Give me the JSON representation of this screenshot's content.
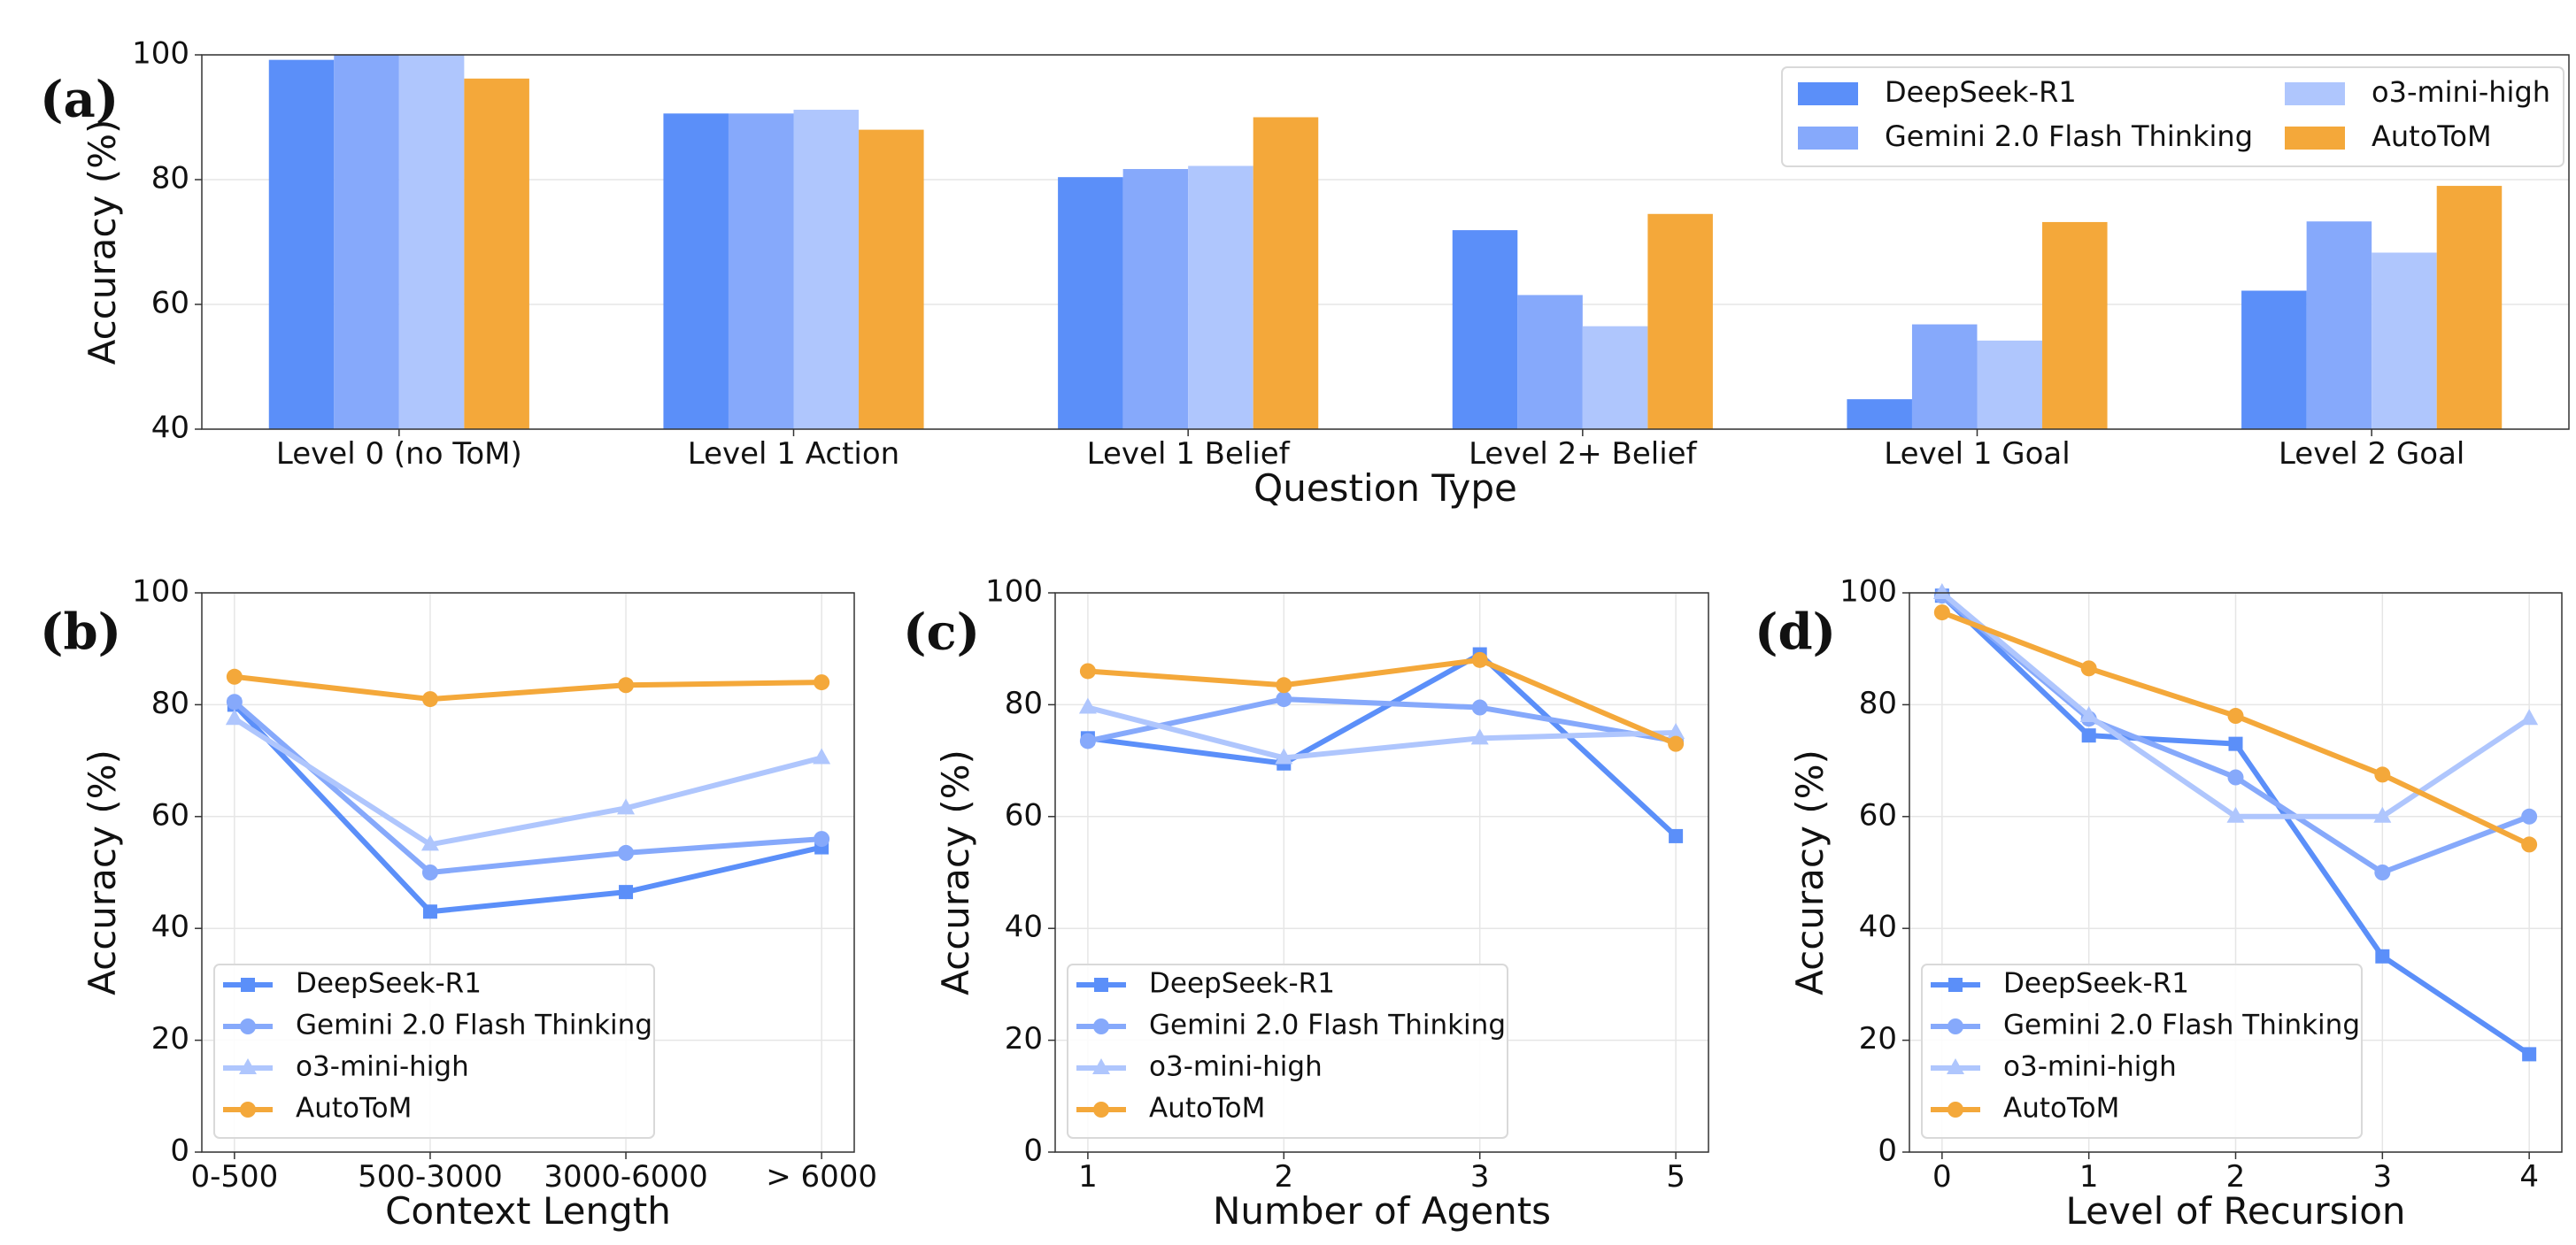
{
  "series_names": [
    "DeepSeek-R1",
    "Gemini 2.0 Flash Thinking",
    "o3-mini-high",
    "AutoToM"
  ],
  "colors": {
    "DeepSeek-R1": "#5b8ff9",
    "Gemini 2.0 Flash Thinking": "#86a9fb",
    "o3-mini-high": "#afc6fd",
    "AutoToM": "#f4a83a"
  },
  "chart_data": [
    {
      "panel": "(a)",
      "type": "bar",
      "categories": [
        "Level 0 (no ToM)",
        "Level 1 Action",
        "Level 1 Belief",
        "Level 2+ Belief",
        "Level 1 Goal",
        "Level 2 Goal"
      ],
      "series": [
        {
          "name": "DeepSeek-R1",
          "values": [
            99.2,
            90.6,
            80.4,
            71.9,
            44.8,
            62.2
          ]
        },
        {
          "name": "Gemini 2.0 Flash Thinking",
          "values": [
            100,
            90.6,
            81.7,
            61.5,
            56.8,
            73.3
          ]
        },
        {
          "name": "o3-mini-high",
          "values": [
            100,
            91.2,
            82.2,
            56.5,
            54.2,
            68.3
          ]
        },
        {
          "name": "AutoToM",
          "values": [
            96.2,
            88.0,
            90.0,
            74.5,
            73.2,
            79.0
          ]
        }
      ],
      "xlabel": "Question Type",
      "ylabel": "Accuracy (%)",
      "ylim": [
        40,
        100
      ],
      "yticks": [
        40,
        60,
        80,
        100
      ],
      "legend": "top-right"
    },
    {
      "panel": "(b)",
      "type": "line",
      "categories": [
        "0-500",
        "500-3000",
        "3000-6000",
        "> 6000"
      ],
      "series": [
        {
          "name": "DeepSeek-R1",
          "marker": "square",
          "values": [
            80.0,
            43.0,
            46.5,
            54.5
          ]
        },
        {
          "name": "Gemini 2.0 Flash Thinking",
          "marker": "circle",
          "values": [
            80.5,
            50.0,
            53.5,
            56.0
          ]
        },
        {
          "name": "o3-mini-high",
          "marker": "triangle",
          "values": [
            77.5,
            55.0,
            61.5,
            70.5
          ]
        },
        {
          "name": "AutoToM",
          "marker": "circle",
          "values": [
            85.0,
            81.0,
            83.5,
            84.0
          ]
        }
      ],
      "xlabel": "Context Length",
      "ylabel": "Accuracy (%)",
      "ylim": [
        0,
        100
      ],
      "yticks": [
        0,
        20,
        40,
        60,
        80,
        100
      ],
      "legend": "bottom-left"
    },
    {
      "panel": "(c)",
      "type": "line",
      "categories": [
        "1",
        "2",
        "3",
        "5"
      ],
      "series": [
        {
          "name": "DeepSeek-R1",
          "marker": "square",
          "values": [
            74.0,
            69.5,
            89.0,
            56.5
          ]
        },
        {
          "name": "Gemini 2.0 Flash Thinking",
          "marker": "circle",
          "values": [
            73.5,
            81.0,
            79.5,
            73.5
          ]
        },
        {
          "name": "o3-mini-high",
          "marker": "triangle",
          "values": [
            79.5,
            70.5,
            74.0,
            75.0
          ]
        },
        {
          "name": "AutoToM",
          "marker": "circle",
          "values": [
            86.0,
            83.5,
            88.0,
            73.0
          ]
        }
      ],
      "xlabel": "Number of Agents",
      "ylabel": "Accuracy (%)",
      "ylim": [
        0,
        100
      ],
      "yticks": [
        0,
        20,
        40,
        60,
        80,
        100
      ],
      "legend": "bottom-left"
    },
    {
      "panel": "(d)",
      "type": "line",
      "categories": [
        "0",
        "1",
        "2",
        "3",
        "4"
      ],
      "series": [
        {
          "name": "DeepSeek-R1",
          "marker": "square",
          "values": [
            99.5,
            74.5,
            73.0,
            35.0,
            17.5
          ]
        },
        {
          "name": "Gemini 2.0 Flash Thinking",
          "marker": "circle",
          "values": [
            99.5,
            77.5,
            67.0,
            50.0,
            60.0
          ]
        },
        {
          "name": "o3-mini-high",
          "marker": "triangle",
          "values": [
            100,
            78.0,
            60.0,
            60.0,
            77.5
          ]
        },
        {
          "name": "AutoToM",
          "marker": "circle",
          "values": [
            96.5,
            86.5,
            78.0,
            67.5,
            55.0
          ]
        }
      ],
      "xlabel": "Level of Recursion",
      "ylabel": "Accuracy (%)",
      "ylim": [
        0,
        100
      ],
      "yticks": [
        0,
        20,
        40,
        60,
        80,
        100
      ],
      "legend": "bottom-left"
    }
  ]
}
